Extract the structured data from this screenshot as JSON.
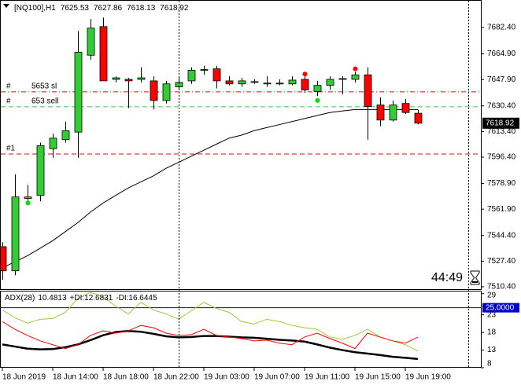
{
  "chart_data": [
    {
      "type": "candlestick",
      "title": "[NQ100],H1",
      "categories": [
        "18 Jun 2019",
        null,
        null,
        null,
        "18 Jun 14:00",
        null,
        null,
        null,
        "18 Jun 18:00",
        null,
        null,
        null,
        "18 Jun 22:00",
        null,
        null,
        null,
        "19 Jun 03:00",
        null,
        null,
        null,
        "19 Jun 07:00",
        null,
        null,
        null,
        "19 Jun 11:00",
        null,
        null,
        null,
        "19 Jun 15:00",
        null,
        null,
        null,
        "19 Jun 19:00",
        null
      ],
      "open": [
        7537,
        7521,
        7569,
        7571,
        7602,
        7608,
        7613,
        7664,
        7683,
        7648,
        7648,
        7648,
        7647,
        7634,
        7643,
        7647,
        7654,
        7655,
        7647,
        7645,
        7646,
        7645,
        7645,
        7645,
        7648,
        7640,
        7644,
        7648,
        7648,
        7651,
        7631,
        7621,
        7632,
        7625.53
      ],
      "high": [
        7540,
        7585,
        7578,
        7606,
        7612,
        7620,
        7680,
        7688,
        7689,
        7650,
        7649,
        7656,
        7650,
        7647,
        7649,
        7656,
        7657,
        7657,
        7650,
        7649,
        7648,
        7650,
        7648,
        7650,
        7650,
        7647,
        7650,
        7650,
        7653,
        7656,
        7636,
        7634,
        7635,
        7627.86
      ],
      "low": [
        7515,
        7518,
        7567,
        7567,
        7596,
        7606,
        7596,
        7661,
        7647,
        7646,
        7629,
        7646,
        7628,
        7632,
        7641,
        7645,
        7651,
        7642,
        7644,
        7643,
        7645,
        7643,
        7644,
        7644,
        7639,
        7637,
        7641,
        7638,
        7646,
        7608,
        7617,
        7620,
        7625,
        7618.13
      ],
      "close": [
        7521,
        7570,
        7570,
        7604,
        7609,
        7614,
        7666,
        7682,
        7647,
        7649,
        7647,
        7649,
        7634,
        7645,
        7646,
        7654,
        7654.5,
        7647,
        7645,
        7647,
        7646.5,
        7645.5,
        7645.5,
        7647.5,
        7641,
        7644,
        7648,
        7648.5,
        7651,
        7630,
        7621,
        7631,
        7626,
        7618.92
      ],
      "up_color": "#32cd32",
      "down_color": "#ff0000",
      "ma": {
        "color": "#000000",
        "values": [
          7523,
          7527,
          7531,
          7536,
          7541,
          7547,
          7553,
          7560,
          7566,
          7571,
          7576,
          7580,
          7584,
          7589,
          7593,
          7597,
          7601,
          7605,
          7609,
          7611,
          7614,
          7616,
          7618,
          7620,
          7622,
          7624,
          7626,
          7627,
          7628,
          7628,
          7628,
          7628,
          7628,
          7628
        ]
      },
      "markers": [
        {
          "color": "#00e000",
          "values": [
            null,
            null,
            7566,
            null,
            null,
            null,
            null,
            null,
            null,
            null,
            null,
            null,
            null,
            null,
            null,
            null,
            null,
            null,
            null,
            null,
            null,
            null,
            null,
            null,
            null,
            7634,
            null,
            null,
            null,
            null,
            null,
            null,
            null,
            null
          ]
        },
        {
          "color": "#ff0000",
          "values": [
            null,
            null,
            null,
            null,
            null,
            null,
            null,
            null,
            null,
            null,
            null,
            null,
            null,
            null,
            null,
            null,
            null,
            null,
            null,
            null,
            null,
            null,
            null,
            null,
            7651.5,
            null,
            null,
            null,
            7655,
            null,
            null,
            null,
            null,
            null
          ]
        }
      ],
      "levels": [
        {
          "prefix": "#",
          "label": "5653 sl",
          "value": 7639.7,
          "color": "#ff0000",
          "style": "dash-dot"
        },
        {
          "prefix": "#",
          "label": "653 sell",
          "value": 7629.8,
          "color": "#32cd32",
          "style": "dash"
        },
        {
          "prefix": "#1",
          "value": 7598.5,
          "color": "#ff0000",
          "style": "dash"
        }
      ],
      "countdown": "44:49",
      "ylim": [
        7508.84,
        7700.64
      ],
      "yticks": [
        {
          "value": 7682.4,
          "label": "7682.40"
        },
        {
          "value": 7664.9,
          "label": "7664.90"
        },
        {
          "value": 7647.9,
          "label": "7647.90"
        },
        {
          "value": 7630.4,
          "label": "7630.40"
        },
        {
          "value": 7613.4,
          "label": "7613.40"
        },
        {
          "value": 7596.4,
          "label": "7596.40"
        },
        {
          "value": 7578.9,
          "label": "7578.90"
        },
        {
          "value": 7561.9,
          "label": "7561.90"
        },
        {
          "value": 7544.4,
          "label": "7544.40"
        },
        {
          "value": 7527.4,
          "label": "7527.40"
        },
        {
          "value": 7510.4,
          "label": "7510.40"
        }
      ],
      "grid": false
    },
    {
      "type": "line",
      "title": "ADX(28)",
      "series": [
        {
          "name": "ADX(28)",
          "color": "#000000",
          "width": 2.5,
          "values": [
            14.6,
            14.0,
            13.4,
            13.2,
            13.3,
            13.8,
            14.6,
            15.8,
            17.2,
            18.1,
            18.4,
            18.2,
            17.6,
            16.9,
            16.6,
            16.7,
            17.0,
            17.0,
            16.8,
            16.6,
            16.5,
            16.2,
            15.9,
            15.7,
            15.4,
            14.6,
            13.7,
            13.0,
            12.4,
            12.0,
            11.6,
            11.1,
            10.8,
            10.4813
          ]
        },
        {
          "name": "+DI:",
          "color": "#9acd32",
          "width": 1,
          "values": [
            24.35,
            22.17,
            20.64,
            21.73,
            21.95,
            23.7,
            27.63,
            29.38,
            28.07,
            25.45,
            23.26,
            26.54,
            24.35,
            23.26,
            21.73,
            24.14,
            26.54,
            24.79,
            23.7,
            21.08,
            20.42,
            21.73,
            21.08,
            19.98,
            19.33,
            18.89,
            16.7,
            16.05,
            17.14,
            18.89,
            16.7,
            15.61,
            14.52,
            12.6831
          ]
        },
        {
          "name": "-DI:",
          "color": "#ff0000",
          "width": 1,
          "values": [
            21.08,
            18.89,
            17.14,
            15.61,
            14.52,
            13.43,
            14.52,
            17.14,
            18.45,
            17.8,
            18.45,
            19.98,
            19.33,
            17.8,
            17.14,
            17.36,
            18.89,
            17.14,
            16.7,
            16.27,
            15.61,
            15.83,
            14.96,
            14.52,
            16.7,
            17.8,
            16.27,
            14.96,
            13.43,
            17.8,
            16.7,
            15.61,
            14.96,
            16.6445
          ]
        }
      ],
      "level": {
        "value": 25,
        "label": "25.0000",
        "color": "#0000cc"
      },
      "ylim": [
        8,
        29.6
      ],
      "yticks": [
        29,
        23,
        18,
        13,
        8
      ],
      "grid": false
    }
  ]
}
